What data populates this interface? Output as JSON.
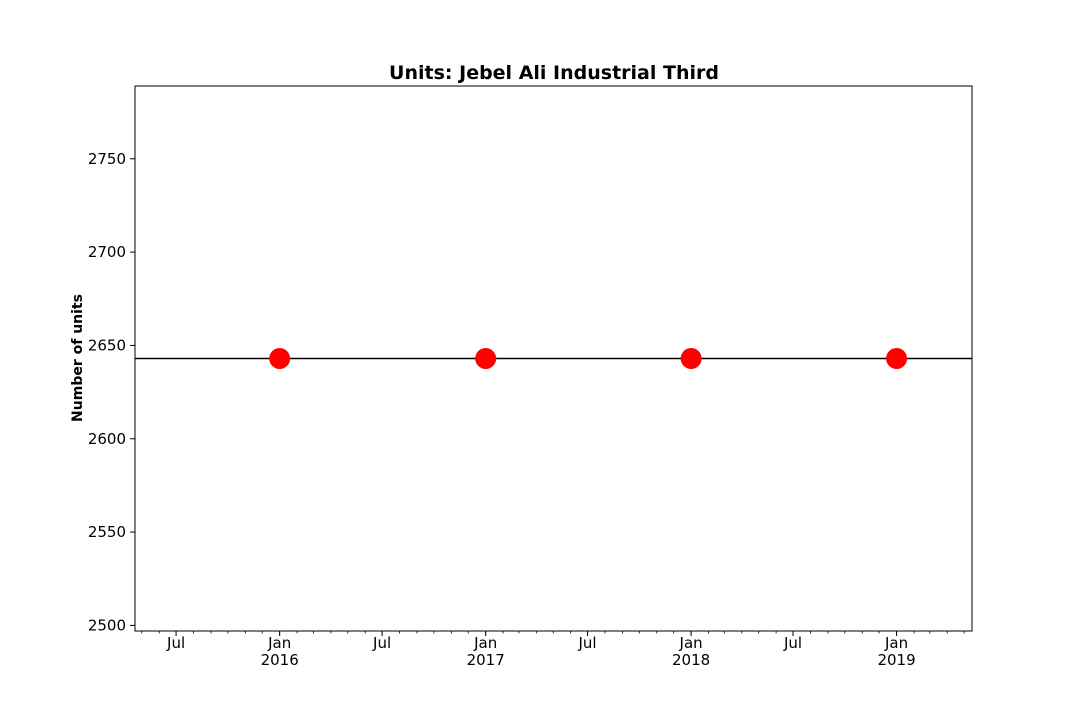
{
  "chart_data": {
    "type": "scatter",
    "title": "Units: Jebel Ali Industrial Third",
    "xlabel": "",
    "ylabel": "Number of units",
    "xlim": [
      "2015-04-19",
      "2019-05-15"
    ],
    "ylim": [
      2497,
      2789
    ],
    "yticks": [
      2500,
      2550,
      2600,
      2650,
      2700,
      2750
    ],
    "xticks": [
      {
        "date": "2015-07-01",
        "label": "Jul",
        "sublabel": ""
      },
      {
        "date": "2016-01-01",
        "label": "Jan",
        "sublabel": "2016"
      },
      {
        "date": "2016-07-01",
        "label": "Jul",
        "sublabel": ""
      },
      {
        "date": "2017-01-01",
        "label": "Jan",
        "sublabel": "2017"
      },
      {
        "date": "2017-07-01",
        "label": "Jul",
        "sublabel": ""
      },
      {
        "date": "2018-01-01",
        "label": "Jan",
        "sublabel": "2018"
      },
      {
        "date": "2018-07-01",
        "label": "Jul",
        "sublabel": ""
      },
      {
        "date": "2019-01-01",
        "label": "Jan",
        "sublabel": "2019"
      }
    ],
    "series": [
      {
        "x": [
          "2016-01-01",
          "2017-01-01",
          "2018-01-01",
          "2019-01-01"
        ],
        "values": [
          2643,
          2643,
          2643,
          2643
        ],
        "color": "#ff0000"
      }
    ],
    "reference_line": {
      "y": 2643,
      "color": "#000000"
    },
    "grid": false,
    "legend": "none"
  }
}
